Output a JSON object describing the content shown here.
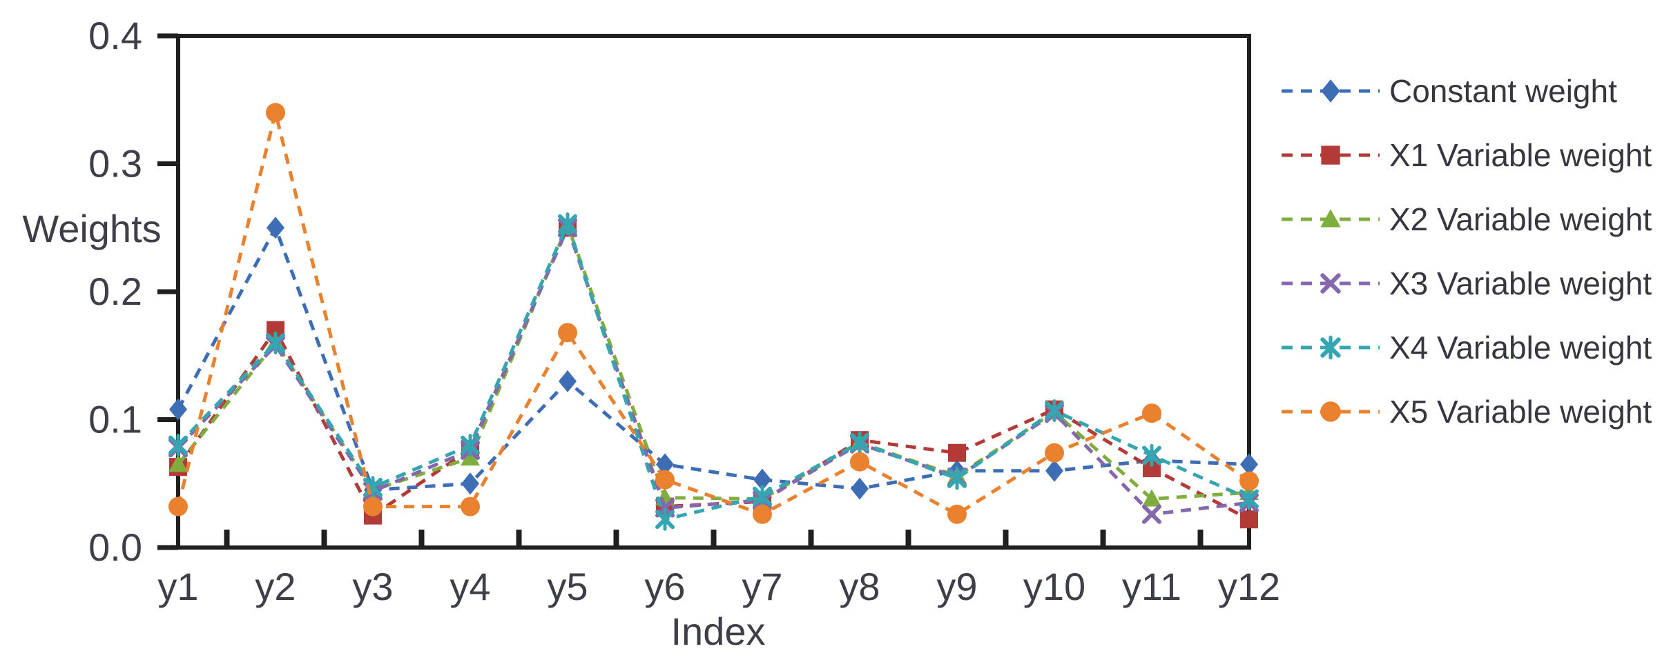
{
  "figure": {
    "background": "#ffffff",
    "frame_color": "#1f1f1f",
    "text_color": "#3e3e48"
  },
  "chart_data": {
    "type": "line",
    "title": "",
    "xlabel": "Index",
    "ylabel": "Weights",
    "ylim": [
      0,
      0.4
    ],
    "y_tick_labels": [
      "0.0",
      "0.1",
      "0.2",
      "0.3",
      "0.4"
    ],
    "grid": false,
    "line_style": "dashed",
    "legend_position": "right",
    "categories": [
      "y1",
      "y2",
      "y3",
      "y4",
      "y5",
      "y6",
      "y7",
      "y8",
      "y9",
      "y10",
      "y11",
      "y12"
    ],
    "series": [
      {
        "name": "Constant weight",
        "color": "#3d6eb5",
        "marker": "diamond",
        "values": [
          0.108,
          0.25,
          0.045,
          0.05,
          0.13,
          0.065,
          0.053,
          0.046,
          0.06,
          0.06,
          0.068,
          0.065
        ]
      },
      {
        "name": "X1 Variable weight",
        "color": "#b23b38",
        "marker": "square",
        "values": [
          0.063,
          0.17,
          0.025,
          0.077,
          0.25,
          0.032,
          0.036,
          0.084,
          0.074,
          0.108,
          0.062,
          0.022
        ]
      },
      {
        "name": "X2 Variable weight",
        "color": "#7fae3e",
        "marker": "triangle",
        "values": [
          0.065,
          0.16,
          0.045,
          0.07,
          0.252,
          0.039,
          0.038,
          0.082,
          0.056,
          0.106,
          0.038,
          0.043
        ]
      },
      {
        "name": "X3 Variable weight",
        "color": "#8567ae",
        "marker": "x",
        "values": [
          0.078,
          0.158,
          0.044,
          0.076,
          0.25,
          0.031,
          0.037,
          0.081,
          0.055,
          0.105,
          0.026,
          0.035
        ]
      },
      {
        "name": "X4 Variable weight",
        "color": "#35a5b1",
        "marker": "star",
        "values": [
          0.08,
          0.16,
          0.047,
          0.08,
          0.253,
          0.022,
          0.04,
          0.082,
          0.054,
          0.107,
          0.072,
          0.038
        ]
      },
      {
        "name": "X5 Variable weight",
        "color": "#e9812f",
        "marker": "circle",
        "values": [
          0.032,
          0.34,
          0.032,
          0.032,
          0.168,
          0.053,
          0.026,
          0.067,
          0.026,
          0.074,
          0.105,
          0.052
        ]
      }
    ]
  }
}
